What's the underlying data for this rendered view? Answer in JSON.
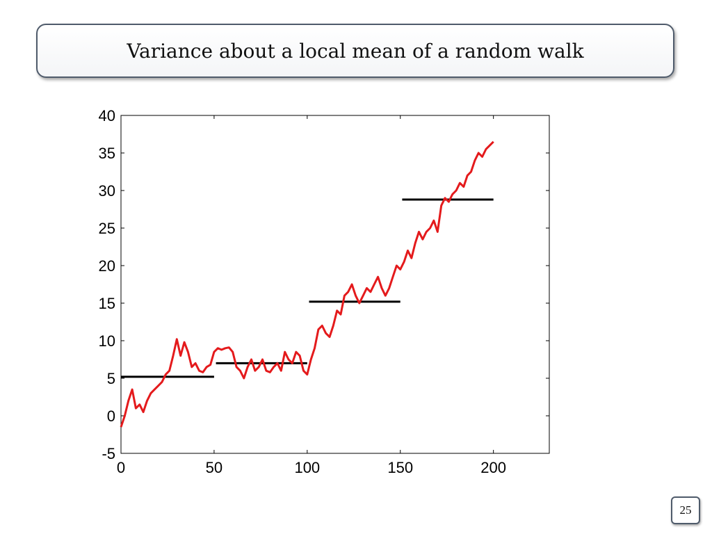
{
  "slide": {
    "title": "Variance about a local mean of a random walk",
    "page_number": "25"
  },
  "colors": {
    "walk": "#e41a1c",
    "local_mean": "#000000",
    "frame": "#4f5b6b"
  },
  "chart_data": {
    "type": "line",
    "title": "",
    "xlabel": "",
    "ylabel": "",
    "xlim": [
      0,
      230
    ],
    "ylim": [
      -5,
      40
    ],
    "xticks": [
      0,
      50,
      100,
      150,
      200
    ],
    "yticks": [
      -5,
      0,
      5,
      10,
      15,
      20,
      25,
      30,
      35,
      40
    ],
    "grid": false,
    "series": [
      {
        "role": "random-walk",
        "x": [
          0,
          2,
          4,
          6,
          8,
          10,
          12,
          14,
          16,
          18,
          20,
          22,
          24,
          26,
          28,
          30,
          32,
          34,
          36,
          38,
          40,
          42,
          44,
          46,
          48,
          50,
          52,
          54,
          56,
          58,
          60,
          62,
          64,
          66,
          68,
          70,
          72,
          74,
          76,
          78,
          80,
          82,
          84,
          86,
          88,
          90,
          92,
          94,
          96,
          98,
          100,
          102,
          104,
          106,
          108,
          110,
          112,
          114,
          116,
          118,
          120,
          122,
          124,
          126,
          128,
          130,
          132,
          134,
          136,
          138,
          140,
          142,
          144,
          146,
          148,
          150,
          152,
          154,
          156,
          158,
          160,
          162,
          164,
          166,
          168,
          170,
          172,
          174,
          176,
          178,
          180,
          182,
          184,
          186,
          188,
          190,
          192,
          194,
          196,
          198,
          200
        ],
        "y": [
          -1.5,
          0,
          2,
          3.5,
          1,
          1.5,
          0.5,
          2,
          3,
          3.5,
          4,
          4.5,
          5.5,
          6,
          8,
          10.2,
          8,
          9.8,
          8.5,
          6.5,
          7,
          6,
          5.8,
          6.5,
          6.8,
          8.5,
          9,
          8.8,
          9,
          9.1,
          8.5,
          6.5,
          6,
          5,
          6.5,
          7.5,
          6,
          6.5,
          7.5,
          6,
          5.8,
          6.5,
          7,
          6,
          8.5,
          7.5,
          7,
          8.5,
          8,
          6,
          5.5,
          7.5,
          9,
          11.5,
          12,
          11,
          10.5,
          12,
          14,
          13.5,
          16,
          16.5,
          17.5,
          16,
          15,
          16,
          17,
          16.5,
          17.5,
          18.5,
          17,
          16,
          17,
          18.5,
          20,
          19.5,
          20.5,
          22,
          21,
          23,
          24.5,
          23.5,
          24.5,
          25,
          26,
          24.5,
          28,
          29,
          28.5,
          29.5,
          30,
          31,
          30.5,
          32,
          32.5,
          34,
          35,
          34.5,
          35.5,
          36,
          36.5
        ]
      },
      {
        "role": "local-mean",
        "segments": [
          {
            "x": [
              0,
              50
            ],
            "y": 5.2
          },
          {
            "x": [
              51,
              100
            ],
            "y": 7.0
          },
          {
            "x": [
              101,
              150
            ],
            "y": 15.2
          },
          {
            "x": [
              151,
              200
            ],
            "y": 28.8
          }
        ]
      }
    ]
  }
}
